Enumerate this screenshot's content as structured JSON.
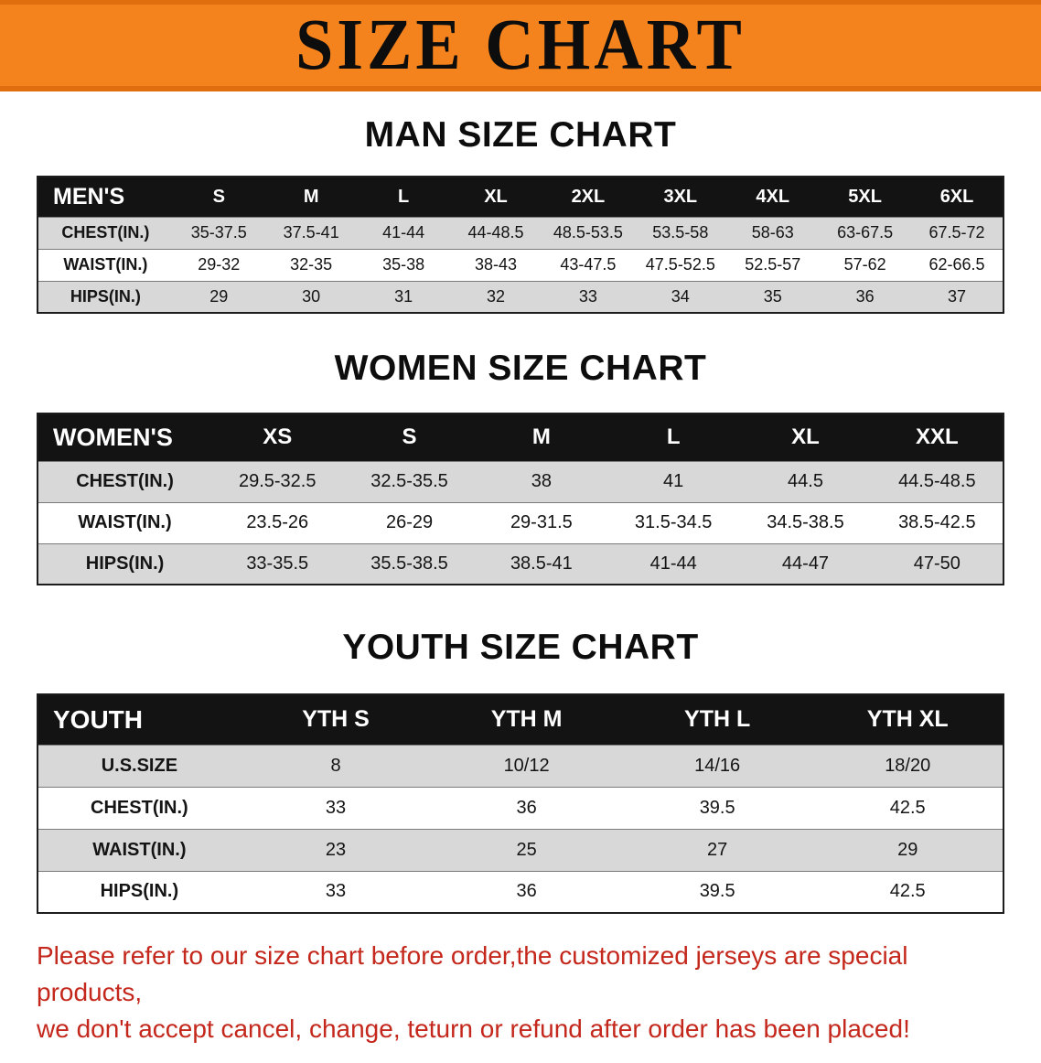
{
  "banner": {
    "title": "SIZE CHART",
    "bg_color": "#f5831d"
  },
  "sections": [
    {
      "id": "men",
      "heading": "MAN SIZE CHART",
      "table": {
        "header": [
          "MEN'S",
          "S",
          "M",
          "L",
          "XL",
          "2XL",
          "3XL",
          "4XL",
          "5XL",
          "6XL"
        ],
        "rows": [
          [
            "CHEST(IN.)",
            "35-37.5",
            "37.5-41",
            "41-44",
            "44-48.5",
            "48.5-53.5",
            "53.5-58",
            "58-63",
            "63-67.5",
            "67.5-72"
          ],
          [
            "WAIST(IN.)",
            "29-32",
            "32-35",
            "35-38",
            "38-43",
            "43-47.5",
            "47.5-52.5",
            "52.5-57",
            "57-62",
            "62-66.5"
          ],
          [
            "HIPS(IN.)",
            "29",
            "30",
            "31",
            "32",
            "33",
            "34",
            "35",
            "36",
            "37"
          ]
        ]
      }
    },
    {
      "id": "women",
      "heading": "WOMEN SIZE CHART",
      "table": {
        "header": [
          "WOMEN'S",
          "XS",
          "S",
          "M",
          "L",
          "XL",
          "XXL"
        ],
        "rows": [
          [
            "CHEST(IN.)",
            "29.5-32.5",
            "32.5-35.5",
            "38",
            "41",
            "44.5",
            "44.5-48.5"
          ],
          [
            "WAIST(IN.)",
            "23.5-26",
            "26-29",
            "29-31.5",
            "31.5-34.5",
            "34.5-38.5",
            "38.5-42.5"
          ],
          [
            "HIPS(IN.)",
            "33-35.5",
            "35.5-38.5",
            "38.5-41",
            "41-44",
            "44-47",
            "47-50"
          ]
        ]
      }
    },
    {
      "id": "youth",
      "heading": "YOUTH SIZE CHART",
      "table": {
        "header": [
          "YOUTH",
          "YTH S",
          "YTH M",
          "YTH L",
          "YTH XL"
        ],
        "rows": [
          [
            "U.S.SIZE",
            "8",
            "10/12",
            "14/16",
            "18/20"
          ],
          [
            "CHEST(IN.)",
            "33",
            "36",
            "39.5",
            "42.5"
          ],
          [
            "WAIST(IN.)",
            "23",
            "25",
            "27",
            "29"
          ],
          [
            "HIPS(IN.)",
            "33",
            "36",
            "39.5",
            "42.5"
          ]
        ]
      }
    }
  ],
  "disclaimer": {
    "color": "#c4271b",
    "lines": [
      "Please refer to our size chart before order,the customized jerseys are special products,",
      "we don't accept cancel, change, teturn or refund after order has been placed!"
    ]
  }
}
